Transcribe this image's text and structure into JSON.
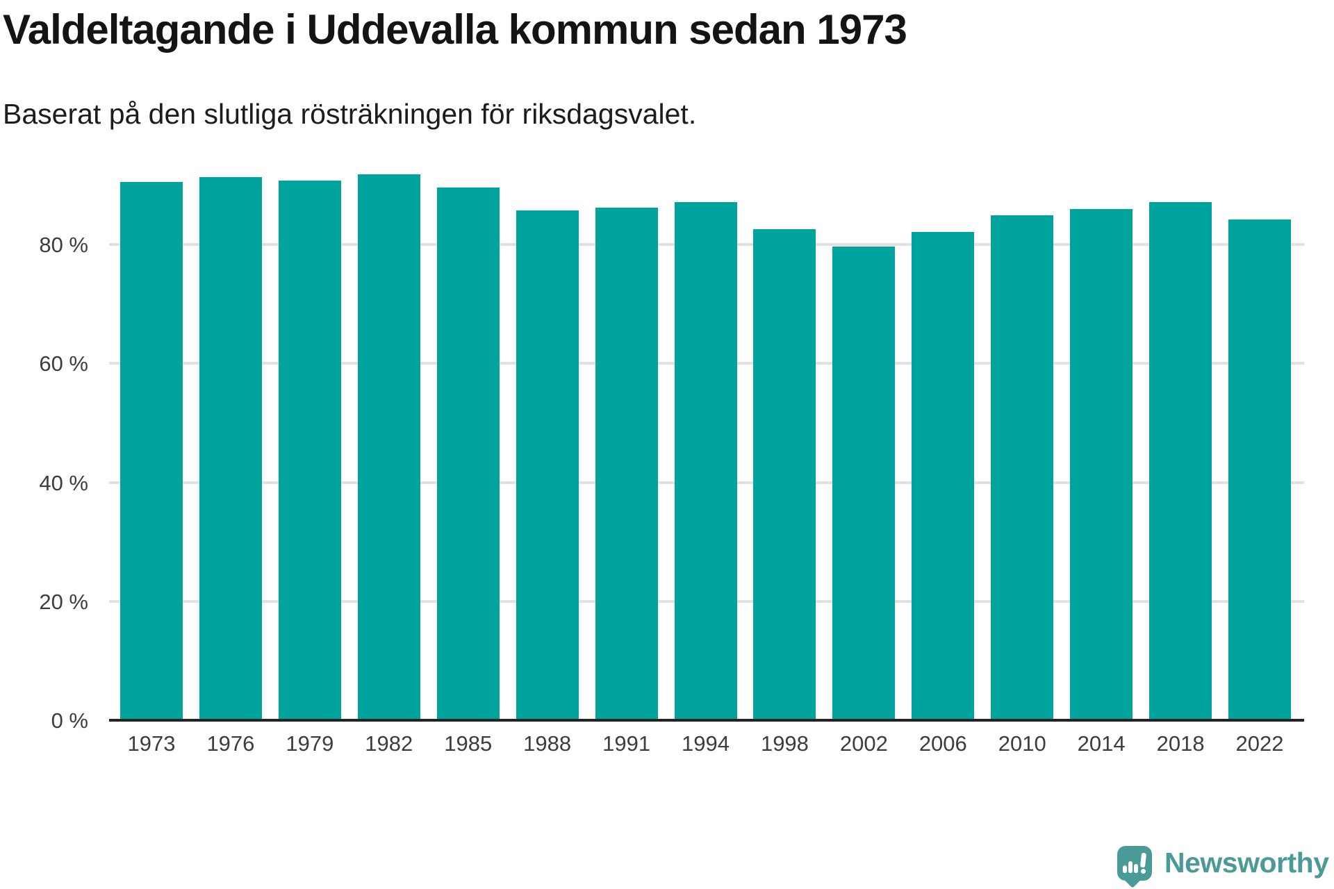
{
  "title": "Valdeltagande i Uddevalla kommun sedan 1973",
  "subtitle": "Baserat på den slutliga rösträkningen för riksdagsvalet.",
  "colors": {
    "bar": "#00a49c",
    "gridline": "#e1e1e1",
    "axis_line": "#232323",
    "axis_text": "#3d3d3d",
    "title_text": "#141414",
    "logo_teal": "#4a9b98"
  },
  "chart_data": {
    "type": "bar",
    "title": "Valdeltagande i Uddevalla kommun sedan 1973",
    "subtitle": "Baserat på den slutliga rösträkningen för riksdagsvalet.",
    "categories": [
      "1973",
      "1976",
      "1979",
      "1982",
      "1985",
      "1988",
      "1991",
      "1994",
      "1998",
      "2002",
      "2006",
      "2010",
      "2014",
      "2018",
      "2022"
    ],
    "values": [
      90.5,
      91.3,
      90.8,
      91.8,
      89.6,
      85.8,
      86.2,
      87.2,
      82.6,
      79.7,
      82.1,
      84.9,
      86.0,
      87.1,
      84.2
    ],
    "unit": "%",
    "xlabel": "",
    "ylabel": "",
    "ylim": [
      0,
      100
    ],
    "yticks": [
      {
        "label": "80 %",
        "value": 80
      },
      {
        "label": "60 %",
        "value": 60
      },
      {
        "label": "40 %",
        "value": 40
      },
      {
        "label": "20 %",
        "value": 20
      },
      {
        "label": "0 %",
        "value": 0
      }
    ],
    "grid": "horizontal",
    "legend": "none"
  },
  "branding": {
    "wordmark": "Newsworthy",
    "icon": "newsworthy-pin-barchart-icon"
  }
}
